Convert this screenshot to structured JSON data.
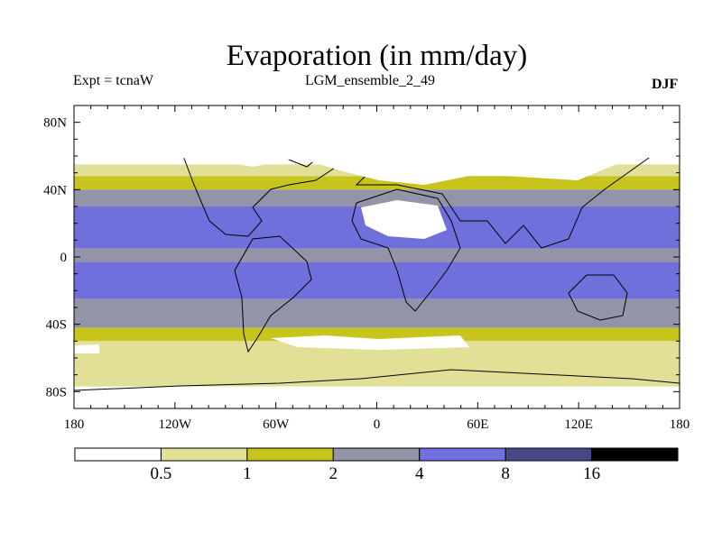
{
  "chart_data": {
    "type": "heatmap",
    "title": "Evaporation (in mm/day)",
    "subtitle_left": "Expt = tcnaW",
    "subtitle_center": "LGM_ensemble_2_49",
    "subtitle_right": "DJF",
    "xlabel": "",
    "ylabel": "",
    "xlim": [
      -180,
      180
    ],
    "ylim": [
      -90,
      90
    ],
    "x_ticks": [
      {
        "value": -180,
        "label": "180"
      },
      {
        "value": -120,
        "label": "120W"
      },
      {
        "value": -60,
        "label": "60W"
      },
      {
        "value": 0,
        "label": "0"
      },
      {
        "value": 60,
        "label": "60E"
      },
      {
        "value": 120,
        "label": "120E"
      },
      {
        "value": 180,
        "label": "180"
      }
    ],
    "y_ticks": [
      {
        "value": 80,
        "label": "80N"
      },
      {
        "value": 40,
        "label": "40N"
      },
      {
        "value": 0,
        "label": "0"
      },
      {
        "value": -40,
        "label": "40S"
      },
      {
        "value": -80,
        "label": "80S"
      }
    ],
    "colorbar": {
      "levels": [
        "0.5",
        "1",
        "2",
        "4",
        "8",
        "16"
      ],
      "colors": [
        "#ffffff",
        "#e2e096",
        "#c8c41e",
        "#9494a8",
        "#7070dc",
        "#484888",
        "#000000"
      ]
    },
    "zonal_bands": [
      {
        "lat_top": 90,
        "lat_bottom": 55,
        "class": 0
      },
      {
        "lat_top": 55,
        "lat_bottom": 48,
        "class": 1
      },
      {
        "lat_top": 48,
        "lat_bottom": 40,
        "class": 2
      },
      {
        "lat_top": 40,
        "lat_bottom": 30,
        "class": 3
      },
      {
        "lat_top": 30,
        "lat_bottom": 5,
        "class": 4
      },
      {
        "lat_top": 5,
        "lat_bottom": -3,
        "class": 3
      },
      {
        "lat_top": -3,
        "lat_bottom": -25,
        "class": 4
      },
      {
        "lat_top": -25,
        "lat_bottom": -42,
        "class": 3
      },
      {
        "lat_top": -42,
        "lat_bottom": -50,
        "class": 2
      },
      {
        "lat_top": -50,
        "lat_bottom": -77,
        "class": 1
      },
      {
        "lat_top": -77,
        "lat_bottom": -90,
        "class": 0
      }
    ]
  }
}
